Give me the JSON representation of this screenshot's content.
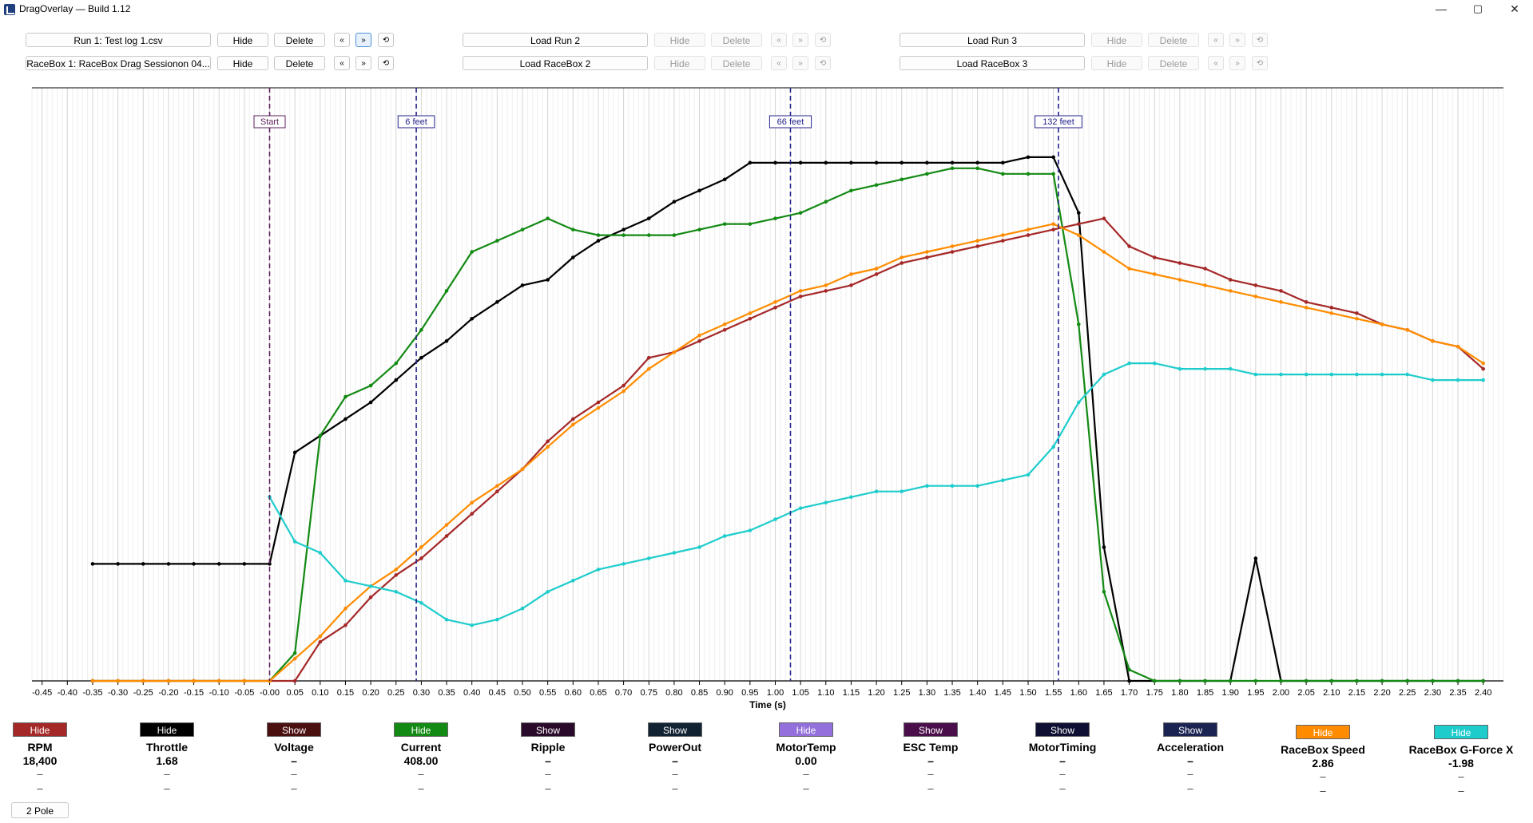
{
  "window": {
    "title": "DragOverlay — Build 1.12",
    "minimize": "—",
    "maximize": "▢",
    "close": "✕"
  },
  "toolbar": {
    "rows": [
      [
        {
          "load": "Run 1: Test log 1.csv",
          "hide": "Hide",
          "delete": "Delete",
          "prev": "«",
          "next": "»",
          "reset": "⟲",
          "enabled": true
        },
        {
          "load": "Load Run 2",
          "hide": "Hide",
          "delete": "Delete",
          "prev": "«",
          "next": "»",
          "reset": "⟲",
          "enabled": false
        },
        {
          "load": "Load Run 3",
          "hide": "Hide",
          "delete": "Delete",
          "prev": "«",
          "next": "»",
          "reset": "⟲",
          "enabled": false
        }
      ],
      [
        {
          "load": "RaceBox 1: RaceBox Drag Sessionon 04...",
          "hide": "Hide",
          "delete": "Delete",
          "prev": "«",
          "next": "»",
          "reset": "⟲",
          "enabled": true
        },
        {
          "load": "Load RaceBox 2",
          "hide": "Hide",
          "delete": "Delete",
          "prev": "«",
          "next": "»",
          "reset": "⟲",
          "enabled": false
        },
        {
          "load": "Load RaceBox 3",
          "hide": "Hide",
          "delete": "Delete",
          "prev": "«",
          "next": "»",
          "reset": "⟲",
          "enabled": false
        }
      ]
    ]
  },
  "chart_data": {
    "type": "line",
    "xlabel": "Time (s)",
    "xlim": [
      -0.47,
      2.44
    ],
    "ylim": [
      0,
      1
    ],
    "xticks": [
      "-0.45",
      "-0.40",
      "-0.35",
      "-0.30",
      "-0.25",
      "-0.20",
      "-0.15",
      "-0.10",
      "-0.05",
      "-0.00",
      "0.05",
      "0.10",
      "0.15",
      "0.20",
      "0.25",
      "0.30",
      "0.35",
      "0.40",
      "0.45",
      "0.50",
      "0.55",
      "0.60",
      "0.65",
      "0.70",
      "0.75",
      "0.80",
      "0.85",
      "0.90",
      "0.95",
      "1.00",
      "1.05",
      "1.10",
      "1.15",
      "1.20",
      "1.25",
      "1.30",
      "1.35",
      "1.40",
      "1.45",
      "1.50",
      "1.55",
      "1.60",
      "1.65",
      "1.70",
      "1.75",
      "1.80",
      "1.85",
      "1.90",
      "1.95",
      "2.00",
      "2.05",
      "2.10",
      "2.15",
      "2.20",
      "2.25",
      "2.30",
      "2.35",
      "2.40"
    ],
    "markers": [
      {
        "label": "Start",
        "x": 0.0,
        "color": "#5a1f5a"
      },
      {
        "label": "6 feet",
        "x": 0.29,
        "color": "#23238a"
      },
      {
        "label": "66 feet",
        "x": 1.03,
        "color": "#23238a"
      },
      {
        "label": "132 feet",
        "x": 1.56,
        "color": "#23238a"
      }
    ],
    "series": [
      {
        "name": "Throttle",
        "color": "#000000",
        "x": [
          -0.35,
          -0.3,
          -0.25,
          -0.2,
          -0.15,
          -0.1,
          -0.05,
          0.0,
          0.05,
          0.1,
          0.15,
          0.2,
          0.25,
          0.3,
          0.35,
          0.4,
          0.45,
          0.5,
          0.55,
          0.6,
          0.65,
          0.7,
          0.75,
          0.8,
          0.85,
          0.9,
          0.95,
          1.0,
          1.05,
          1.1,
          1.15,
          1.2,
          1.25,
          1.3,
          1.35,
          1.4,
          1.45,
          1.5,
          1.55,
          1.6,
          1.65,
          1.7,
          1.75,
          1.8,
          1.85,
          1.9,
          1.95,
          2.0,
          2.05,
          2.1,
          2.15,
          2.2,
          2.25,
          2.3,
          2.35,
          2.4
        ],
        "y": [
          0.21,
          0.21,
          0.21,
          0.21,
          0.21,
          0.21,
          0.21,
          0.21,
          0.41,
          0.44,
          0.47,
          0.5,
          0.54,
          0.58,
          0.61,
          0.65,
          0.68,
          0.71,
          0.72,
          0.76,
          0.79,
          0.81,
          0.83,
          0.86,
          0.88,
          0.9,
          0.93,
          0.93,
          0.93,
          0.93,
          0.93,
          0.93,
          0.93,
          0.93,
          0.93,
          0.93,
          0.93,
          0.94,
          0.94,
          0.84,
          0.24,
          0.0,
          0.0,
          0.0,
          0.0,
          0.0,
          0.22,
          0.0,
          0.0,
          0.0,
          0.0,
          0.0,
          0.0,
          0.0,
          0.0,
          0.0
        ]
      },
      {
        "name": "Current",
        "color": "#138a13",
        "x": [
          -0.35,
          -0.3,
          -0.25,
          -0.2,
          -0.15,
          -0.1,
          -0.05,
          0.0,
          0.05,
          0.1,
          0.15,
          0.2,
          0.25,
          0.3,
          0.35,
          0.4,
          0.45,
          0.5,
          0.55,
          0.6,
          0.65,
          0.7,
          0.75,
          0.8,
          0.85,
          0.9,
          0.95,
          1.0,
          1.05,
          1.1,
          1.15,
          1.2,
          1.25,
          1.3,
          1.35,
          1.4,
          1.45,
          1.5,
          1.55,
          1.6,
          1.65,
          1.7,
          1.75,
          1.8,
          1.85,
          1.9,
          1.95,
          2.0,
          2.05,
          2.1,
          2.15,
          2.2,
          2.25,
          2.3,
          2.35,
          2.4
        ],
        "y": [
          0.0,
          0.0,
          0.0,
          0.0,
          0.0,
          0.0,
          0.0,
          0.0,
          0.05,
          0.44,
          0.51,
          0.53,
          0.57,
          0.63,
          0.7,
          0.77,
          0.79,
          0.81,
          0.83,
          0.81,
          0.8,
          0.8,
          0.8,
          0.8,
          0.81,
          0.82,
          0.82,
          0.83,
          0.84,
          0.86,
          0.88,
          0.89,
          0.9,
          0.91,
          0.92,
          0.92,
          0.91,
          0.91,
          0.91,
          0.64,
          0.16,
          0.02,
          0.0,
          0.0,
          0.0,
          0.0,
          0.0,
          0.0,
          0.0,
          0.0,
          0.0,
          0.0,
          0.0,
          0.0,
          0.0,
          0.0
        ]
      },
      {
        "name": "RPM",
        "color": "#a52828",
        "x": [
          -0.35,
          -0.3,
          -0.25,
          -0.2,
          -0.15,
          -0.1,
          -0.05,
          0.0,
          0.05,
          0.1,
          0.15,
          0.2,
          0.25,
          0.3,
          0.35,
          0.4,
          0.45,
          0.5,
          0.55,
          0.6,
          0.65,
          0.7,
          0.75,
          0.8,
          0.85,
          0.9,
          0.95,
          1.0,
          1.05,
          1.1,
          1.15,
          1.2,
          1.25,
          1.3,
          1.35,
          1.4,
          1.45,
          1.5,
          1.55,
          1.6,
          1.65,
          1.7,
          1.75,
          1.8,
          1.85,
          1.9,
          1.95,
          2.0,
          2.05,
          2.1,
          2.15,
          2.2,
          2.25,
          2.3,
          2.35,
          2.4
        ],
        "y": [
          0.0,
          0.0,
          0.0,
          0.0,
          0.0,
          0.0,
          0.0,
          0.0,
          0.0,
          0.07,
          0.1,
          0.15,
          0.19,
          0.22,
          0.26,
          0.3,
          0.34,
          0.38,
          0.43,
          0.47,
          0.5,
          0.53,
          0.58,
          0.59,
          0.61,
          0.63,
          0.65,
          0.67,
          0.69,
          0.7,
          0.71,
          0.73,
          0.75,
          0.76,
          0.77,
          0.78,
          0.79,
          0.8,
          0.81,
          0.82,
          0.83,
          0.78,
          0.76,
          0.75,
          0.74,
          0.72,
          0.71,
          0.7,
          0.68,
          0.67,
          0.66,
          0.64,
          0.63,
          0.61,
          0.6,
          0.56
        ]
      },
      {
        "name": "RaceBox Speed",
        "color": "#ff8c00",
        "x": [
          -0.35,
          -0.3,
          -0.25,
          -0.2,
          -0.15,
          -0.1,
          -0.05,
          0.0,
          0.05,
          0.1,
          0.15,
          0.2,
          0.25,
          0.3,
          0.35,
          0.4,
          0.45,
          0.5,
          0.55,
          0.6,
          0.65,
          0.7,
          0.75,
          0.8,
          0.85,
          0.9,
          0.95,
          1.0,
          1.05,
          1.1,
          1.15,
          1.2,
          1.25,
          1.3,
          1.35,
          1.4,
          1.45,
          1.5,
          1.55,
          1.6,
          1.65,
          1.7,
          1.75,
          1.8,
          1.85,
          1.9,
          1.95,
          2.0,
          2.05,
          2.1,
          2.15,
          2.2,
          2.25,
          2.3,
          2.35,
          2.4
        ],
        "y": [
          0.0,
          0.0,
          0.0,
          0.0,
          0.0,
          0.0,
          0.0,
          0.0,
          0.04,
          0.08,
          0.13,
          0.17,
          0.2,
          0.24,
          0.28,
          0.32,
          0.35,
          0.38,
          0.42,
          0.46,
          0.49,
          0.52,
          0.56,
          0.59,
          0.62,
          0.64,
          0.66,
          0.68,
          0.7,
          0.71,
          0.73,
          0.74,
          0.76,
          0.77,
          0.78,
          0.79,
          0.8,
          0.81,
          0.82,
          0.8,
          0.77,
          0.74,
          0.73,
          0.72,
          0.71,
          0.7,
          0.69,
          0.68,
          0.67,
          0.66,
          0.65,
          0.64,
          0.63,
          0.61,
          0.6,
          0.57
        ]
      },
      {
        "name": "RaceBox G-Force X",
        "color": "#1fcccc",
        "x": [
          -0.35,
          -0.3,
          -0.25,
          -0.2,
          -0.15,
          -0.1,
          -0.05,
          0.0,
          0.05,
          0.1,
          0.15,
          0.2,
          0.25,
          0.3,
          0.35,
          0.4,
          0.45,
          0.5,
          0.55,
          0.6,
          0.65,
          0.7,
          0.75,
          0.8,
          0.85,
          0.9,
          0.95,
          1.0,
          1.05,
          1.1,
          1.15,
          1.2,
          1.25,
          1.3,
          1.35,
          1.4,
          1.45,
          1.5,
          1.55,
          1.6,
          1.65,
          1.7,
          1.75,
          1.8,
          1.85,
          1.9,
          1.95,
          2.0,
          2.05,
          2.1,
          2.15,
          2.2,
          2.25,
          2.3,
          2.35,
          2.4
        ],
        "y": [
          null,
          null,
          null,
          null,
          null,
          null,
          null,
          0.33,
          0.25,
          0.23,
          0.18,
          0.17,
          0.16,
          0.14,
          0.11,
          0.1,
          0.11,
          0.13,
          0.16,
          0.18,
          0.2,
          0.21,
          0.22,
          0.23,
          0.24,
          0.26,
          0.27,
          0.29,
          0.31,
          0.32,
          0.33,
          0.34,
          0.34,
          0.35,
          0.35,
          0.35,
          0.36,
          0.37,
          0.42,
          0.5,
          0.55,
          0.57,
          0.57,
          0.56,
          0.56,
          0.56,
          0.55,
          0.55,
          0.55,
          0.55,
          0.55,
          0.55,
          0.55,
          0.54,
          0.54,
          0.54
        ]
      }
    ]
  },
  "channels": [
    {
      "name": "RPM",
      "button": "Hide",
      "color": "#a52828",
      "text": "#ffffff",
      "value": "18,400",
      "d1": "–",
      "d2": "–"
    },
    {
      "name": "Throttle",
      "button": "Hide",
      "color": "#000000",
      "text": "#ffffff",
      "value": "1.68",
      "d1": "–",
      "d2": "–"
    },
    {
      "name": "Voltage",
      "button": "Show",
      "color": "#4a0f0f",
      "text": "#ffffff",
      "value": "–",
      "d1": "–",
      "d2": "–"
    },
    {
      "name": "Current",
      "button": "Hide",
      "color": "#138a13",
      "text": "#ffffff",
      "value": "408.00",
      "d1": "–",
      "d2": "–"
    },
    {
      "name": "Ripple",
      "button": "Show",
      "color": "#2a0a2a",
      "text": "#ffffff",
      "value": "–",
      "d1": "–",
      "d2": "–"
    },
    {
      "name": "PowerOut",
      "button": "Show",
      "color": "#112233",
      "text": "#ffffff",
      "value": "–",
      "d1": "–",
      "d2": "–"
    },
    {
      "name": "MotorTemp",
      "button": "Hide",
      "color": "#9370db",
      "text": "#ffffff",
      "value": "0.00",
      "d1": "–",
      "d2": "–"
    },
    {
      "name": "ESC Temp",
      "button": "Show",
      "color": "#4a0f4a",
      "text": "#ffffff",
      "value": "–",
      "d1": "–",
      "d2": "–"
    },
    {
      "name": "MotorTiming",
      "button": "Show",
      "color": "#0f0f33",
      "text": "#ffffff",
      "value": "–",
      "d1": "–",
      "d2": "–"
    },
    {
      "name": "Acceleration",
      "button": "Show",
      "color": "#1a2352",
      "text": "#ffffff",
      "value": "–",
      "d1": "–",
      "d2": "–"
    },
    {
      "name": "RaceBox Speed",
      "button": "Hide",
      "color": "#ff8c00",
      "text": "#ffffff",
      "value": "2.86",
      "d1": "–",
      "d2": "–"
    },
    {
      "name": "RaceBox G-Force X",
      "button": "Hide",
      "color": "#1fcccc",
      "text": "#ffffff",
      "value": "-1.98",
      "d1": "–",
      "d2": "–"
    }
  ],
  "footer": {
    "pole_label": "2 Pole"
  }
}
